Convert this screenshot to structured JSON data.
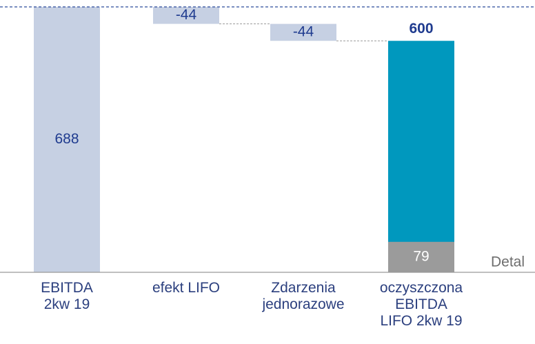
{
  "chart_data": {
    "type": "waterfall",
    "categories": [
      [
        "EBITDA",
        "2kw 19"
      ],
      [
        "efekt LIFO"
      ],
      [
        "Zdarzenia",
        "jednorazowe"
      ],
      [
        "oczyszczona",
        "EBITDA",
        "LIFO 2kw 19"
      ]
    ],
    "values": [
      688,
      -44,
      -44,
      600
    ],
    "measures": [
      "absolute",
      "relative",
      "relative",
      "total"
    ],
    "colors": [
      "#c6d0e3",
      "#c6d0e3",
      "#c6d0e3",
      "#0098be"
    ],
    "detal": {
      "name": "Detal",
      "value": 79,
      "color": "#9b9b9b"
    }
  }
}
